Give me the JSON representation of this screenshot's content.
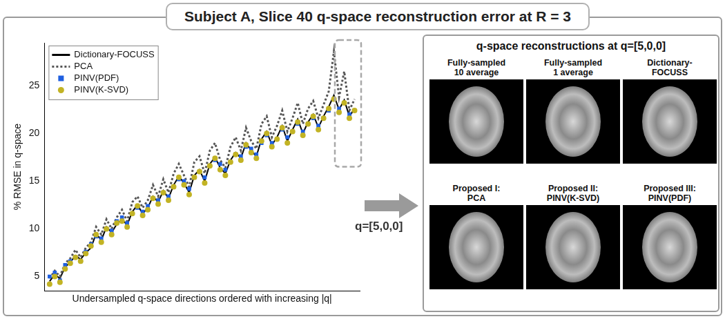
{
  "title": "Subject A, Slice 40 q-space reconstruction error at R = 3",
  "chart_data": {
    "type": "line",
    "x_label": "Undersampled q-space directions ordered with increasing |q|",
    "y_label": "% RMSE in q-space",
    "annotation": "q=[5,0,0]",
    "x": [
      1,
      2,
      3,
      4,
      5,
      6,
      7,
      8,
      9,
      10,
      11,
      12,
      13,
      14,
      15,
      16,
      17,
      18,
      19,
      20,
      21,
      22,
      23,
      24,
      25,
      26,
      27,
      28,
      29,
      30,
      31,
      32,
      33,
      34,
      35,
      36,
      37,
      38,
      39,
      40,
      41,
      42,
      43,
      44,
      45,
      46,
      47,
      48,
      49,
      50,
      51,
      52,
      53,
      54,
      55,
      56,
      57,
      58,
      59,
      60
    ],
    "xlim": [
      0,
      61
    ],
    "ylim": [
      3.5,
      29.5
    ],
    "yticks": [
      5,
      10,
      15,
      20,
      25
    ],
    "grid": false,
    "legend": "upper left",
    "tick_labels": "y",
    "series": [
      {
        "name": "Dictionary-FOCUSS",
        "type": "line",
        "line_style": "solid",
        "marker": "none",
        "color": "#000000",
        "values": [
          4.5,
          5.2,
          4.8,
          6.0,
          6.5,
          7.2,
          6.8,
          7.5,
          8.0,
          9.5,
          8.8,
          10.2,
          9.6,
          10.5,
          11.0,
          10.4,
          11.8,
          12.5,
          11.6,
          12.2,
          13.4,
          12.8,
          14.0,
          13.2,
          14.6,
          15.5,
          14.8,
          13.8,
          15.6,
          16.2,
          15.0,
          16.8,
          17.5,
          16.4,
          15.8,
          17.2,
          18.0,
          17.4,
          19.0,
          18.2,
          17.6,
          19.4,
          20.2,
          18.8,
          19.6,
          20.8,
          19.2,
          20.4,
          21.5,
          20.0,
          21.2,
          22.0,
          20.6,
          21.8,
          22.8,
          24.0,
          22.5,
          23.5,
          21.8,
          22.6
        ]
      },
      {
        "name": "PCA",
        "type": "line",
        "line_style": "dotted",
        "marker": "none",
        "color": "#555555",
        "values": [
          4.8,
          5.6,
          5.0,
          6.4,
          6.9,
          7.8,
          7.0,
          8.0,
          8.6,
          10.2,
          9.4,
          11.0,
          10.0,
          11.2,
          12.0,
          10.8,
          12.8,
          13.4,
          12.2,
          13.0,
          14.6,
          13.4,
          15.2,
          13.8,
          15.8,
          16.8,
          15.6,
          14.4,
          17.0,
          17.6,
          15.8,
          18.2,
          19.0,
          17.2,
          16.4,
          18.6,
          19.6,
          18.2,
          20.6,
          19.2,
          18.4,
          21.0,
          21.8,
          19.6,
          20.8,
          22.4,
          20.2,
          21.6,
          23.2,
          21.0,
          22.6,
          23.4,
          21.6,
          23.0,
          24.4,
          28.6,
          23.8,
          26.5,
          22.4,
          23.6
        ]
      },
      {
        "name": "PINV(PDF)",
        "type": "scatter",
        "marker": "square",
        "color": "#1f5fe0",
        "values": [
          5.0,
          5.4,
          4.6,
          6.2,
          6.6,
          7.0,
          6.6,
          7.6,
          8.4,
          9.2,
          9.0,
          10.0,
          9.8,
          10.8,
          11.2,
          10.6,
          11.6,
          12.2,
          11.8,
          12.4,
          13.2,
          13.0,
          13.8,
          13.4,
          14.4,
          15.2,
          15.0,
          14.2,
          15.4,
          16.0,
          15.4,
          16.6,
          17.2,
          16.8,
          16.2,
          17.0,
          17.8,
          17.6,
          18.6,
          18.4,
          17.8,
          19.0,
          19.8,
          19.0,
          19.4,
          20.4,
          19.6,
          20.2,
          21.0,
          20.2,
          21.0,
          21.6,
          20.8,
          21.6,
          22.4,
          23.6,
          22.6,
          23.2,
          22.0,
          22.4
        ]
      },
      {
        "name": "PINV(K-SVD)",
        "type": "scatter",
        "marker": "circle",
        "color": "#c2b324",
        "values": [
          4.2,
          5.0,
          4.4,
          5.8,
          6.4,
          7.0,
          6.6,
          7.4,
          8.2,
          9.4,
          8.6,
          10.0,
          9.4,
          10.6,
          10.8,
          10.2,
          11.6,
          12.4,
          11.4,
          12.0,
          13.2,
          12.6,
          13.8,
          13.0,
          14.4,
          15.4,
          14.6,
          13.6,
          15.4,
          16.0,
          14.8,
          16.6,
          17.4,
          16.2,
          15.6,
          17.0,
          17.8,
          17.2,
          18.8,
          18.0,
          17.4,
          19.2,
          20.0,
          18.6,
          19.4,
          20.6,
          19.0,
          20.2,
          21.2,
          19.8,
          21.0,
          21.8,
          20.4,
          21.6,
          22.6,
          23.6,
          22.2,
          23.2,
          21.6,
          22.4
        ]
      }
    ]
  },
  "panel": {
    "title": "q-space reconstructions at q=[5,0,0]",
    "images": [
      {
        "title": [
          "Fully-sampled",
          "10 average"
        ]
      },
      {
        "title": [
          "Fully-sampled",
          "1 average"
        ]
      },
      {
        "title": [
          "Dictionary-",
          "FOCUSS"
        ]
      },
      {
        "title": [
          "Proposed I:",
          "PCA"
        ]
      },
      {
        "title": [
          "Proposed II:",
          "PINV(K-SVD)"
        ]
      },
      {
        "title": [
          "Proposed III:",
          "PINV(PDF)"
        ]
      }
    ]
  }
}
